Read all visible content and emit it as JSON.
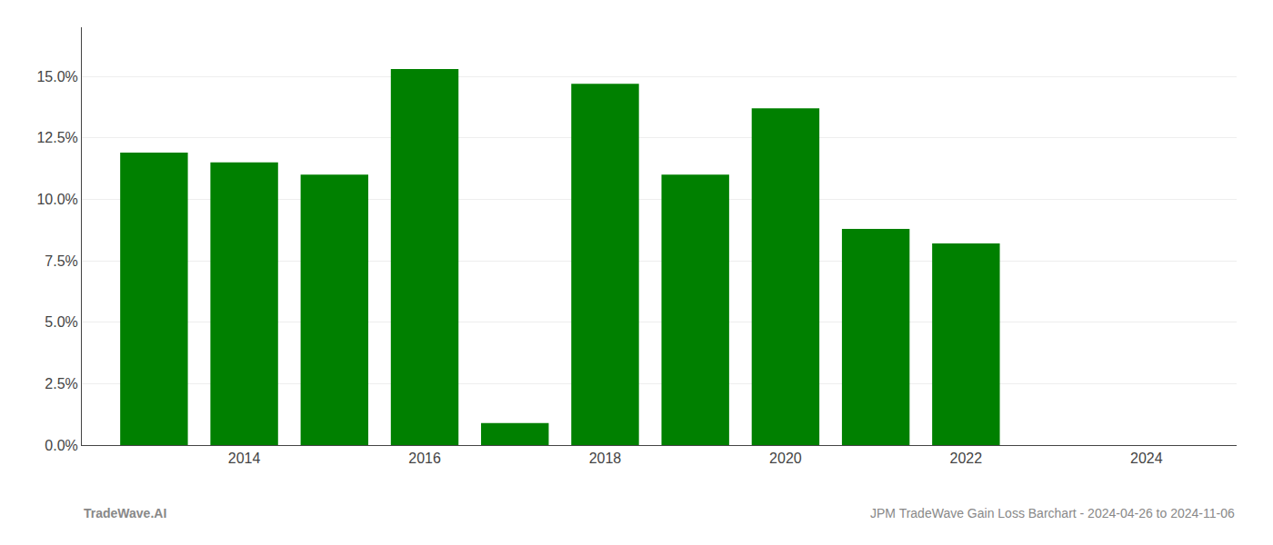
{
  "chart_data": {
    "type": "bar",
    "title": "JPM TradeWave Gain Loss Barchart - 2024-04-26 to 2024-11-06",
    "annotations": [
      "TradeWave.AI"
    ],
    "x": [
      2013,
      2014,
      2015,
      2016,
      2017,
      2018,
      2019,
      2020,
      2021,
      2022
    ],
    "values": [
      0.119,
      0.115,
      0.11,
      0.153,
      0.009,
      0.147,
      0.11,
      0.137,
      0.088,
      0.082
    ],
    "color": "#008000",
    "xlim": [
      2012.2,
      2025.0
    ],
    "xticks": [
      2014,
      2016,
      2018,
      2020,
      2022,
      2024
    ],
    "ylim": [
      0,
      0.17
    ],
    "yticks": [
      {
        "value": 0.0,
        "label": "0.0%"
      },
      {
        "value": 0.025,
        "label": "2.5%"
      },
      {
        "value": 0.05,
        "label": "5.0%"
      },
      {
        "value": 0.075,
        "label": "7.5%"
      },
      {
        "value": 0.1,
        "label": "10.0%"
      },
      {
        "value": 0.125,
        "label": "12.5%"
      },
      {
        "value": 0.15,
        "label": "15.0%"
      }
    ],
    "grid": true
  }
}
